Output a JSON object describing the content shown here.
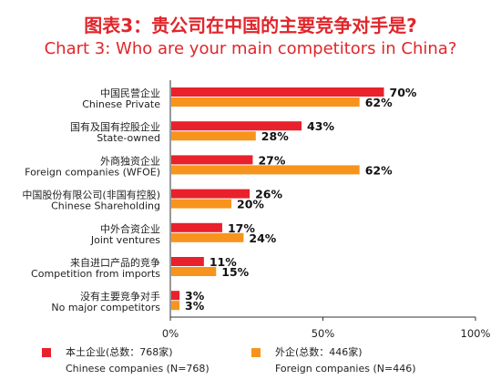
{
  "title": {
    "cn": "图表3：贵公司在中国的主要竞争对手是?",
    "en": "Chart 3: Who are your main competitors in China?"
  },
  "colors": {
    "chinese": "#e8212c",
    "foreign": "#f7941d"
  },
  "chart_data": {
    "type": "bar",
    "orientation": "horizontal",
    "categories": [
      {
        "cn": "中国民营企业",
        "en": "Chinese Private"
      },
      {
        "cn": "国有及国有控股企业",
        "en": "State-owned"
      },
      {
        "cn": "外商独资企业",
        "en": "Foreign companies (WFOE)"
      },
      {
        "cn": "中国股份有限公司(非国有控股)",
        "en": "Chinese Shareholding"
      },
      {
        "cn": "中外合资企业",
        "en": "Joint ventures"
      },
      {
        "cn": "来自进口产品的竞争",
        "en": "Competition from imports"
      },
      {
        "cn": "没有主要竞争对手",
        "en": "No major competitors"
      }
    ],
    "series": [
      {
        "name": "本土企业(总数: 768家) / Chinese companies (N=768)",
        "values": [
          70,
          43,
          27,
          26,
          17,
          11,
          3
        ]
      },
      {
        "name": "外企(总数: 446家) / Foreign companies (N=446)",
        "values": [
          62,
          28,
          62,
          20,
          24,
          15,
          3
        ]
      }
    ],
    "value_suffix": "%",
    "xlim": [
      0,
      100
    ],
    "xticks": [
      "0%",
      "50%",
      "100%"
    ],
    "grid": false,
    "legend": "bottom"
  },
  "legend": [
    {
      "line1": "本土企业(总数：768家)",
      "line2": "Chinese companies (N=768)"
    },
    {
      "line1": "外企(总数：446家)",
      "line2": "Foreign companies (N=446)"
    }
  ]
}
